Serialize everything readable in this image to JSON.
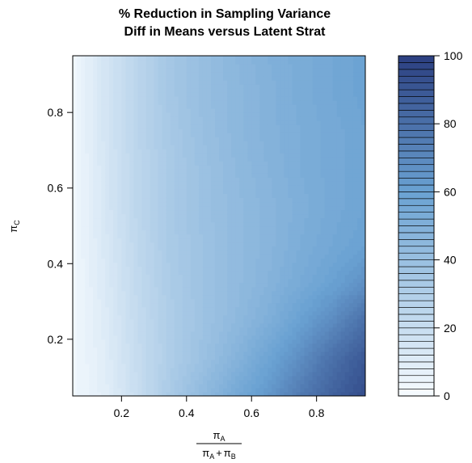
{
  "chart_data": {
    "type": "heatmap",
    "title_line1": "% Reduction in Sampling Variance",
    "title_line2": "Diff in Means versus Latent Strat",
    "xlabel": {
      "numerator": "π",
      "numerator_sub": "A",
      "den1": "π",
      "den1_sub": "A",
      "plus": "+",
      "den2": "π",
      "den2_sub": "B"
    },
    "ylabel": {
      "symbol": "π",
      "sub": "C"
    },
    "xlim": [
      0.05,
      0.95
    ],
    "ylim": [
      0.05,
      0.95
    ],
    "x_ticks": [
      0.2,
      0.4,
      0.6,
      0.8
    ],
    "x_tick_labels": [
      "0.2",
      "0.4",
      "0.6",
      "0.8"
    ],
    "y_ticks": [
      0.2,
      0.4,
      0.6,
      0.8
    ],
    "y_tick_labels": [
      "0.2",
      "0.4",
      "0.6",
      "0.8"
    ],
    "grid_x": [
      0.05,
      0.15,
      0.25,
      0.35,
      0.45,
      0.55,
      0.65,
      0.75,
      0.85,
      0.95
    ],
    "grid_y": [
      0.05,
      0.15,
      0.25,
      0.35,
      0.45,
      0.55,
      0.65,
      0.75,
      0.85,
      0.95
    ],
    "z": [
      [
        3,
        3,
        3,
        3,
        3,
        3,
        3,
        3,
        3,
        3
      ],
      [
        9,
        10,
        11,
        12,
        13,
        14,
        14,
        15,
        15,
        15
      ],
      [
        20,
        21,
        22,
        23,
        24,
        25,
        25,
        26,
        26,
        26
      ],
      [
        33,
        31,
        31,
        32,
        33,
        33,
        33,
        34,
        35,
        35
      ],
      [
        44,
        39,
        38,
        38,
        38,
        39,
        39,
        40,
        41,
        41
      ],
      [
        55,
        48,
        44,
        43,
        43,
        43,
        44,
        45,
        45,
        46
      ],
      [
        64,
        58,
        51,
        48,
        47,
        47,
        48,
        49,
        49,
        50
      ],
      [
        76,
        68,
        60,
        54,
        52,
        51,
        52,
        52,
        53,
        53
      ],
      [
        86,
        80,
        69,
        60,
        56,
        55,
        55,
        55,
        56,
        56
      ],
      [
        94,
        90,
        80,
        67,
        60,
        58,
        58,
        58,
        59,
        59
      ]
    ],
    "z_range": [
      0,
      100
    ],
    "n_levels": 50,
    "color_low": "#f7fbff",
    "color_mid": "#6aa1d2",
    "color_high": "#2b3f80",
    "colorbar_ticks": [
      0,
      20,
      40,
      60,
      80,
      100
    ],
    "colorbar_tick_labels": [
      "0",
      "20",
      "40",
      "60",
      "80",
      "100"
    ],
    "legend_position": "right"
  }
}
